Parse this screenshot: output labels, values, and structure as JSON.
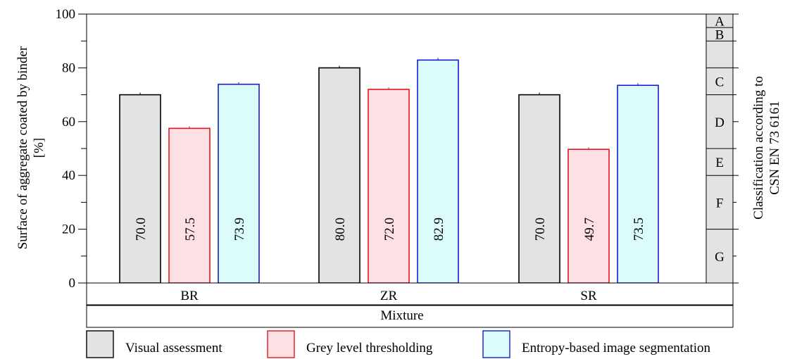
{
  "chart_data": {
    "type": "bar",
    "ylabel_line1": "Surface of aggregate coated by binder",
    "ylabel_line2": "[%]",
    "xlabel": "Mixture",
    "ylim": [
      0,
      100
    ],
    "yticks": [
      0,
      20,
      40,
      60,
      80,
      100
    ],
    "categories": [
      "BR",
      "ZR",
      "SR"
    ],
    "series": [
      {
        "name": "Visual assessment",
        "values": [
          70.0,
          80.0,
          70.0
        ],
        "labels": [
          "70.0",
          "80.0",
          "70.0"
        ],
        "fill": "#e3e3e3",
        "stroke": "#000000"
      },
      {
        "name": "Grey level thresholding",
        "values": [
          57.5,
          72.0,
          49.7
        ],
        "labels": [
          "57.5",
          "72.0",
          "49.7"
        ],
        "fill": "#fde0e3",
        "stroke": "#e8141c"
      },
      {
        "name": "Entropy-based image segmentation",
        "values": [
          73.9,
          82.9,
          73.5
        ],
        "labels": [
          "73.9",
          "82.9",
          "73.5"
        ],
        "fill": "#dcfcfc",
        "stroke": "#1a1ad6"
      }
    ],
    "classification": {
      "label_line1": "Classification according to",
      "label_line2": "CSN EN 73 6161",
      "classes": [
        {
          "name": "A",
          "from": 95,
          "to": 100
        },
        {
          "name": "B",
          "from": 90,
          "to": 95
        },
        {
          "name": "C",
          "from": 70,
          "to": 80
        },
        {
          "name": "D",
          "from": 50,
          "to": 70
        },
        {
          "name": "E",
          "from": 40,
          "to": 50
        },
        {
          "name": "F",
          "from": 20,
          "to": 40
        },
        {
          "name": "G",
          "from": 0,
          "to": 20
        }
      ],
      "boundaries": [
        95,
        90,
        80,
        70,
        50,
        40,
        20
      ],
      "fill": "#e3e3e3"
    },
    "legend_position": "bottom",
    "grid": false
  }
}
